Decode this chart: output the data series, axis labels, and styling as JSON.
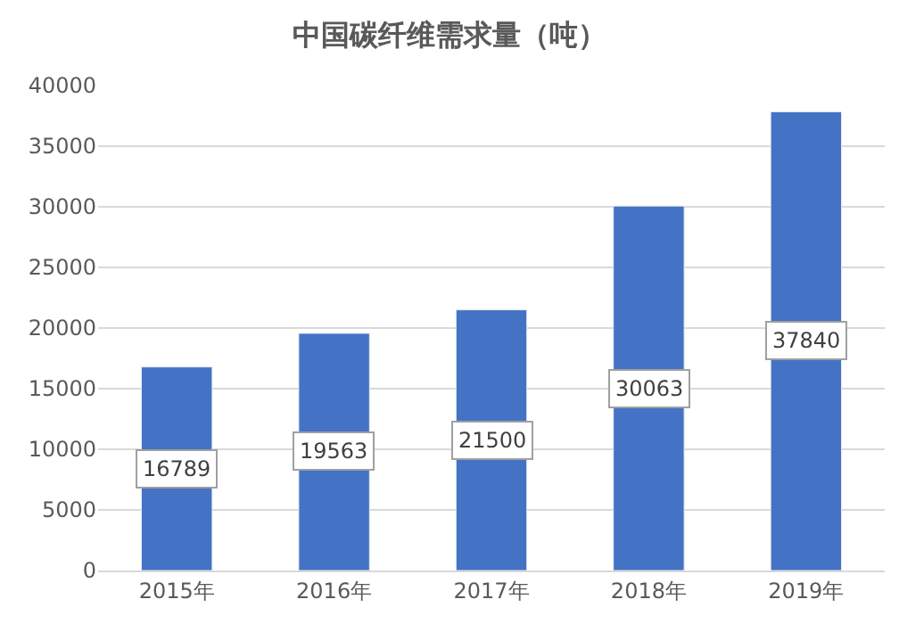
{
  "chart_data": {
    "type": "bar",
    "title": "中国碳纤维需求量（吨）",
    "categories": [
      "2015年",
      "2016年",
      "2017年",
      "2018年",
      "2019年"
    ],
    "values": [
      16789,
      19563,
      21500,
      30063,
      37840
    ],
    "color": "#4472c4",
    "ylim": [
      0,
      40000
    ],
    "yticks": [
      0,
      5000,
      10000,
      15000,
      20000,
      25000,
      30000,
      35000,
      40000
    ],
    "grid": "y",
    "data_labels": true,
    "legend": false
  }
}
